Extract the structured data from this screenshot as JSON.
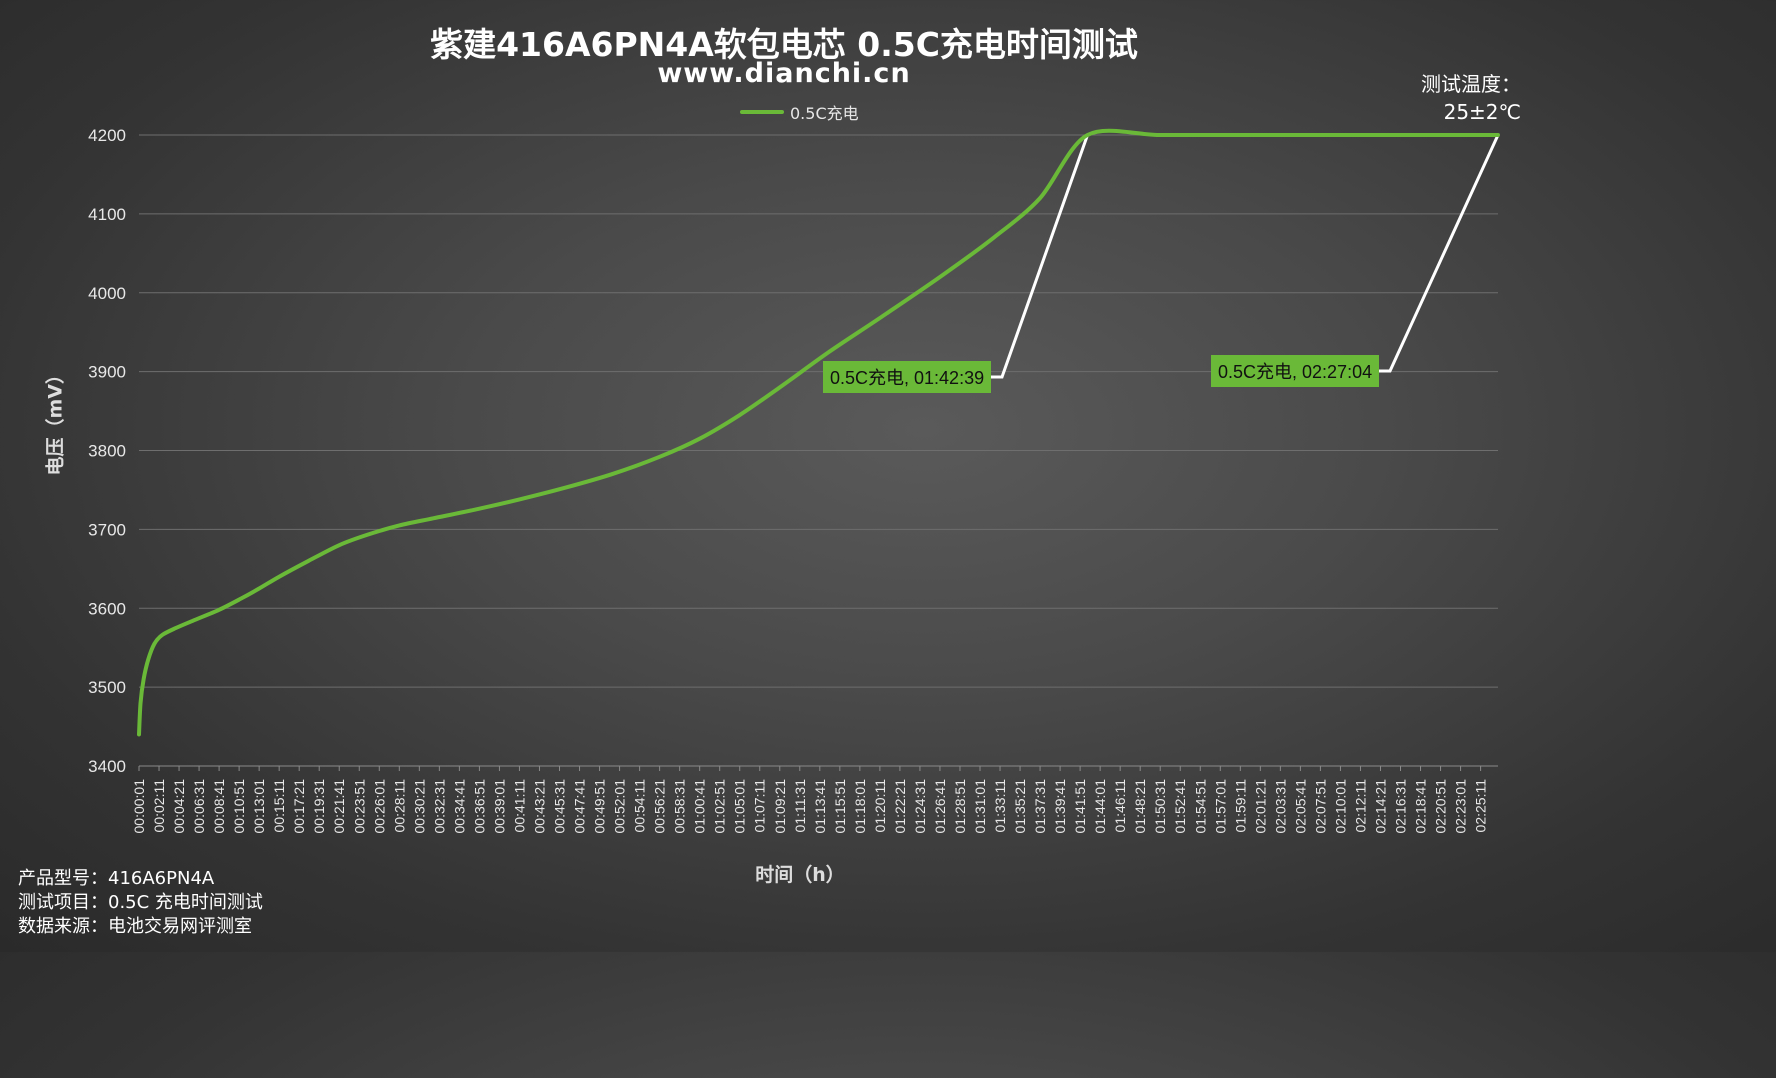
{
  "header": {
    "title": "紫建416A6PN4A软包电芯 0.5C充电时间测试",
    "subtitle": "www.dianchi.cn"
  },
  "temperature": {
    "label": "测试温度：",
    "value": "25±2℃"
  },
  "footer": {
    "model": "产品型号：416A6PN4A",
    "item": "测试项目：0.5C 充电时间测试",
    "source": "数据来源：电池交易网评测室"
  },
  "colors": {
    "series": "#6ab938",
    "grid": "#6e6e6e",
    "axis_text": "#e8e8e8",
    "leader": "#ffffff"
  },
  "callouts": [
    {
      "text": "0.5C充电, 01:42:39",
      "time": "01:42:39",
      "y": 4200
    },
    {
      "text": "0.5C充电, 02:27:04",
      "time": "02:27:04",
      "y": 4200
    }
  ],
  "chart_data": {
    "type": "line",
    "xlabel": "时间（h）",
    "ylabel": "电压（mV）",
    "ylim": [
      3400,
      4200
    ],
    "yticks": [
      3400,
      3500,
      3600,
      3700,
      3800,
      3900,
      4000,
      4100,
      4200
    ],
    "grid": true,
    "legend": "top-center",
    "x_tick_labels": [
      "00:00:01",
      "00:02:11",
      "00:04:21",
      "00:06:31",
      "00:08:41",
      "00:10:51",
      "00:13:01",
      "00:15:11",
      "00:17:21",
      "00:19:31",
      "00:21:41",
      "00:23:51",
      "00:26:01",
      "00:28:11",
      "00:30:21",
      "00:32:31",
      "00:34:41",
      "00:36:51",
      "00:39:01",
      "00:41:11",
      "00:43:21",
      "00:45:31",
      "00:47:41",
      "00:49:51",
      "00:52:01",
      "00:54:11",
      "00:56:21",
      "00:58:31",
      "01:00:41",
      "01:02:51",
      "01:05:01",
      "01:07:11",
      "01:09:21",
      "01:11:31",
      "01:13:41",
      "01:15:51",
      "01:18:01",
      "01:20:11",
      "01:22:21",
      "01:24:31",
      "01:26:41",
      "01:28:51",
      "01:31:01",
      "01:33:11",
      "01:35:21",
      "01:37:31",
      "01:39:41",
      "01:41:51",
      "01:44:01",
      "01:46:11",
      "01:48:21",
      "01:50:31",
      "01:52:41",
      "01:54:51",
      "01:57:01",
      "01:59:11",
      "02:01:21",
      "02:03:31",
      "02:05:41",
      "02:07:51",
      "02:10:01",
      "02:12:11",
      "02:14:21",
      "02:16:31",
      "02:18:41",
      "02:20:51",
      "02:23:01",
      "02:25:11"
    ],
    "x_range": [
      "00:00:01",
      "02:27:04"
    ],
    "series": [
      {
        "name": "0.5C充电",
        "x": [
          "00:00:01",
          "00:00:11",
          "00:00:31",
          "00:01:01",
          "00:01:41",
          "00:02:31",
          "00:04:01",
          "00:06:01",
          "00:08:41",
          "00:11:01",
          "00:13:01",
          "00:15:11",
          "00:18:21",
          "00:21:41",
          "00:24:41",
          "00:28:11",
          "00:31:51",
          "00:36:21",
          "00:41:11",
          "00:46:11",
          "00:51:11",
          "00:56:21",
          "01:00:41",
          "01:05:01",
          "01:09:21",
          "01:14:41",
          "01:20:11",
          "01:26:41",
          "01:32:31",
          "01:37:31",
          "01:42:39",
          "01:50:31",
          "02:00:01",
          "02:10:01",
          "02:18:41",
          "02:27:04"
        ],
        "values": [
          3440,
          3480,
          3510,
          3535,
          3555,
          3566,
          3575,
          3585,
          3598,
          3612,
          3625,
          3640,
          3660,
          3680,
          3693,
          3705,
          3714,
          3725,
          3738,
          3753,
          3770,
          3792,
          3815,
          3845,
          3880,
          3925,
          3968,
          4020,
          4070,
          4120,
          4200,
          4200,
          4200,
          4200,
          4200,
          4200
        ]
      }
    ]
  }
}
